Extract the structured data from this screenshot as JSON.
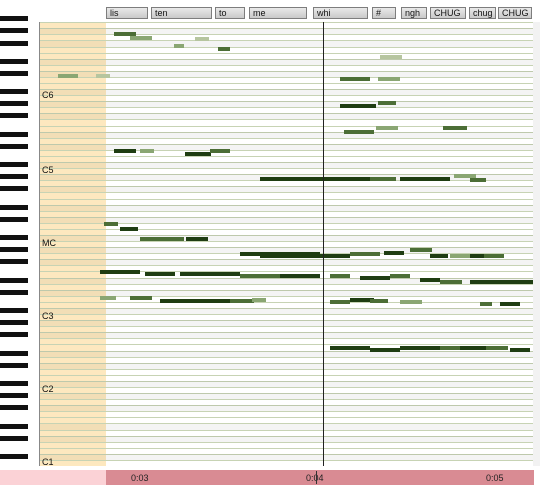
{
  "tokens": [
    {
      "id": "t1",
      "label": "lis"
    },
    {
      "id": "t2",
      "label": "ten"
    },
    {
      "id": "t3",
      "label": "to"
    },
    {
      "id": "t4",
      "label": "me"
    },
    {
      "id": "t5",
      "label": "whi"
    },
    {
      "id": "t6",
      "label": "#"
    },
    {
      "id": "t7",
      "label": "ngh"
    },
    {
      "id": "t8",
      "label": "CHUG"
    },
    {
      "id": "t9",
      "label": "chug"
    },
    {
      "id": "t10",
      "label": "CHUG"
    }
  ],
  "octaves": [
    "C6",
    "C5",
    "MC",
    "C3",
    "C2",
    "C1"
  ],
  "timeline": {
    "t1": "0:03",
    "t2": "0:04",
    "t3": "0:05"
  },
  "colors": {
    "note_dark": "#1f3d12",
    "note_mid": "#4c6e36",
    "note_light": "#8aa673",
    "past_zone": "#fde8bf",
    "timeline_bar": "#d98b93"
  }
}
